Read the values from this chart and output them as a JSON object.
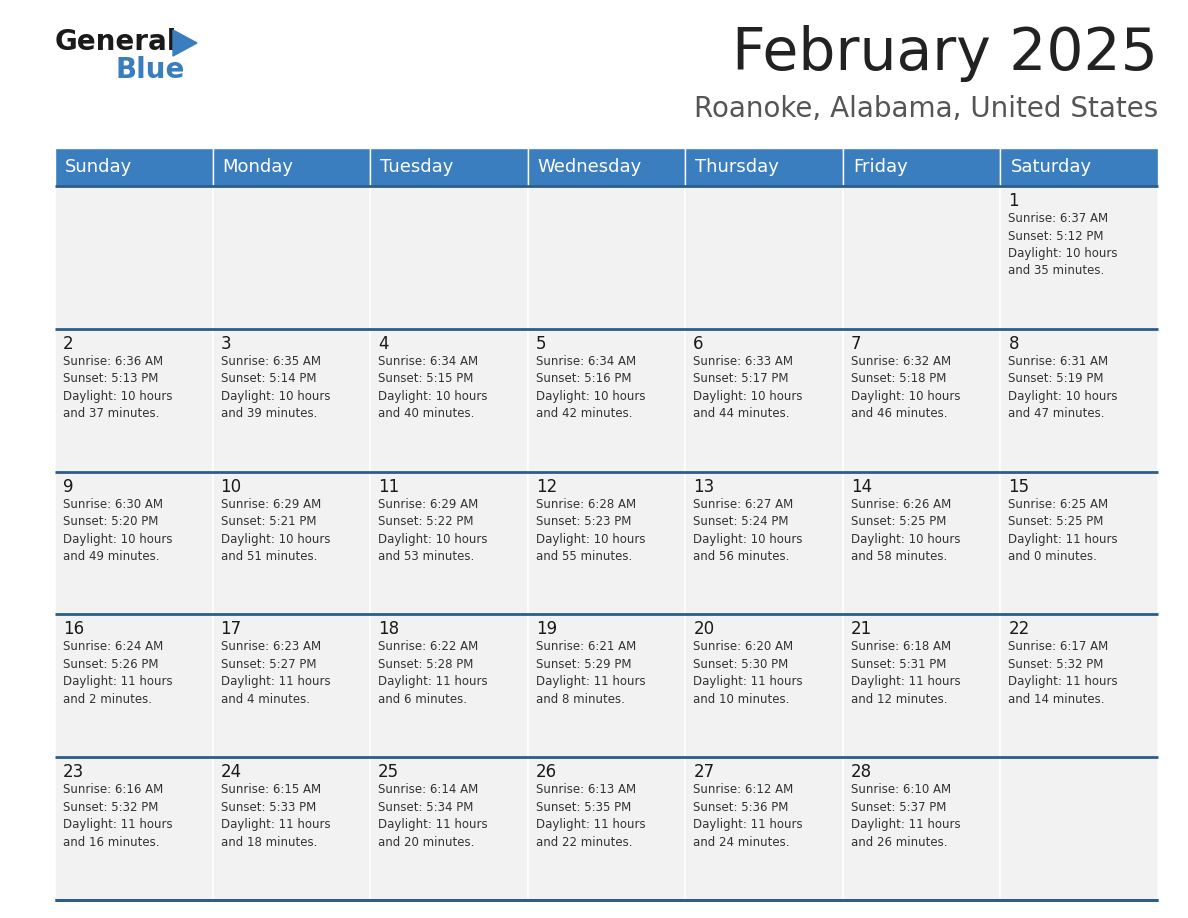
{
  "title": "February 2025",
  "subtitle": "Roanoke, Alabama, United States",
  "header_color": "#3A7EBF",
  "header_text_color": "#FFFFFF",
  "cell_bg_even": "#F2F2F2",
  "cell_bg_odd": "#FFFFFF",
  "border_color": "#2B5C8A",
  "day_headers": [
    "Sunday",
    "Monday",
    "Tuesday",
    "Wednesday",
    "Thursday",
    "Friday",
    "Saturday"
  ],
  "title_color": "#222222",
  "subtitle_color": "#555555",
  "day_num_color": "#1a1a1a",
  "text_color": "#333333",
  "logo_general_color": "#1a1a1a",
  "logo_blue_color": "#3A7EBF",
  "weeks": [
    [
      {
        "day": "",
        "sunrise": "",
        "sunset": "",
        "daylight": ""
      },
      {
        "day": "",
        "sunrise": "",
        "sunset": "",
        "daylight": ""
      },
      {
        "day": "",
        "sunrise": "",
        "sunset": "",
        "daylight": ""
      },
      {
        "day": "",
        "sunrise": "",
        "sunset": "",
        "daylight": ""
      },
      {
        "day": "",
        "sunrise": "",
        "sunset": "",
        "daylight": ""
      },
      {
        "day": "",
        "sunrise": "",
        "sunset": "",
        "daylight": ""
      },
      {
        "day": "1",
        "sunrise": "Sunrise: 6:37 AM",
        "sunset": "Sunset: 5:12 PM",
        "daylight": "Daylight: 10 hours\nand 35 minutes."
      }
    ],
    [
      {
        "day": "2",
        "sunrise": "Sunrise: 6:36 AM",
        "sunset": "Sunset: 5:13 PM",
        "daylight": "Daylight: 10 hours\nand 37 minutes."
      },
      {
        "day": "3",
        "sunrise": "Sunrise: 6:35 AM",
        "sunset": "Sunset: 5:14 PM",
        "daylight": "Daylight: 10 hours\nand 39 minutes."
      },
      {
        "day": "4",
        "sunrise": "Sunrise: 6:34 AM",
        "sunset": "Sunset: 5:15 PM",
        "daylight": "Daylight: 10 hours\nand 40 minutes."
      },
      {
        "day": "5",
        "sunrise": "Sunrise: 6:34 AM",
        "sunset": "Sunset: 5:16 PM",
        "daylight": "Daylight: 10 hours\nand 42 minutes."
      },
      {
        "day": "6",
        "sunrise": "Sunrise: 6:33 AM",
        "sunset": "Sunset: 5:17 PM",
        "daylight": "Daylight: 10 hours\nand 44 minutes."
      },
      {
        "day": "7",
        "sunrise": "Sunrise: 6:32 AM",
        "sunset": "Sunset: 5:18 PM",
        "daylight": "Daylight: 10 hours\nand 46 minutes."
      },
      {
        "day": "8",
        "sunrise": "Sunrise: 6:31 AM",
        "sunset": "Sunset: 5:19 PM",
        "daylight": "Daylight: 10 hours\nand 47 minutes."
      }
    ],
    [
      {
        "day": "9",
        "sunrise": "Sunrise: 6:30 AM",
        "sunset": "Sunset: 5:20 PM",
        "daylight": "Daylight: 10 hours\nand 49 minutes."
      },
      {
        "day": "10",
        "sunrise": "Sunrise: 6:29 AM",
        "sunset": "Sunset: 5:21 PM",
        "daylight": "Daylight: 10 hours\nand 51 minutes."
      },
      {
        "day": "11",
        "sunrise": "Sunrise: 6:29 AM",
        "sunset": "Sunset: 5:22 PM",
        "daylight": "Daylight: 10 hours\nand 53 minutes."
      },
      {
        "day": "12",
        "sunrise": "Sunrise: 6:28 AM",
        "sunset": "Sunset: 5:23 PM",
        "daylight": "Daylight: 10 hours\nand 55 minutes."
      },
      {
        "day": "13",
        "sunrise": "Sunrise: 6:27 AM",
        "sunset": "Sunset: 5:24 PM",
        "daylight": "Daylight: 10 hours\nand 56 minutes."
      },
      {
        "day": "14",
        "sunrise": "Sunrise: 6:26 AM",
        "sunset": "Sunset: 5:25 PM",
        "daylight": "Daylight: 10 hours\nand 58 minutes."
      },
      {
        "day": "15",
        "sunrise": "Sunrise: 6:25 AM",
        "sunset": "Sunset: 5:25 PM",
        "daylight": "Daylight: 11 hours\nand 0 minutes."
      }
    ],
    [
      {
        "day": "16",
        "sunrise": "Sunrise: 6:24 AM",
        "sunset": "Sunset: 5:26 PM",
        "daylight": "Daylight: 11 hours\nand 2 minutes."
      },
      {
        "day": "17",
        "sunrise": "Sunrise: 6:23 AM",
        "sunset": "Sunset: 5:27 PM",
        "daylight": "Daylight: 11 hours\nand 4 minutes."
      },
      {
        "day": "18",
        "sunrise": "Sunrise: 6:22 AM",
        "sunset": "Sunset: 5:28 PM",
        "daylight": "Daylight: 11 hours\nand 6 minutes."
      },
      {
        "day": "19",
        "sunrise": "Sunrise: 6:21 AM",
        "sunset": "Sunset: 5:29 PM",
        "daylight": "Daylight: 11 hours\nand 8 minutes."
      },
      {
        "day": "20",
        "sunrise": "Sunrise: 6:20 AM",
        "sunset": "Sunset: 5:30 PM",
        "daylight": "Daylight: 11 hours\nand 10 minutes."
      },
      {
        "day": "21",
        "sunrise": "Sunrise: 6:18 AM",
        "sunset": "Sunset: 5:31 PM",
        "daylight": "Daylight: 11 hours\nand 12 minutes."
      },
      {
        "day": "22",
        "sunrise": "Sunrise: 6:17 AM",
        "sunset": "Sunset: 5:32 PM",
        "daylight": "Daylight: 11 hours\nand 14 minutes."
      }
    ],
    [
      {
        "day": "23",
        "sunrise": "Sunrise: 6:16 AM",
        "sunset": "Sunset: 5:32 PM",
        "daylight": "Daylight: 11 hours\nand 16 minutes."
      },
      {
        "day": "24",
        "sunrise": "Sunrise: 6:15 AM",
        "sunset": "Sunset: 5:33 PM",
        "daylight": "Daylight: 11 hours\nand 18 minutes."
      },
      {
        "day": "25",
        "sunrise": "Sunrise: 6:14 AM",
        "sunset": "Sunset: 5:34 PM",
        "daylight": "Daylight: 11 hours\nand 20 minutes."
      },
      {
        "day": "26",
        "sunrise": "Sunrise: 6:13 AM",
        "sunset": "Sunset: 5:35 PM",
        "daylight": "Daylight: 11 hours\nand 22 minutes."
      },
      {
        "day": "27",
        "sunrise": "Sunrise: 6:12 AM",
        "sunset": "Sunset: 5:36 PM",
        "daylight": "Daylight: 11 hours\nand 24 minutes."
      },
      {
        "day": "28",
        "sunrise": "Sunrise: 6:10 AM",
        "sunset": "Sunset: 5:37 PM",
        "daylight": "Daylight: 11 hours\nand 26 minutes."
      },
      {
        "day": "",
        "sunrise": "",
        "sunset": "",
        "daylight": ""
      }
    ]
  ],
  "figwidth": 11.88,
  "figheight": 9.18,
  "dpi": 100
}
